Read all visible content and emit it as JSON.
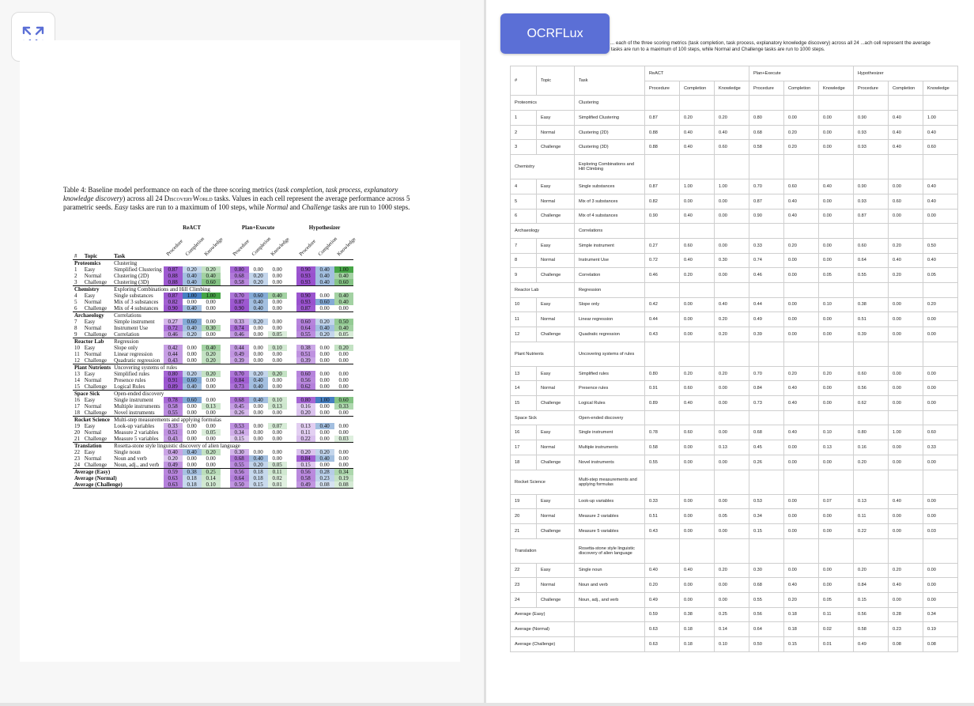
{
  "ui": {
    "badge_label": "OCRFLux",
    "expand_icon": "expand-arrows-icon",
    "accent_color": "#5b6fd6"
  },
  "paper": {
    "caption_lead": "Table 4: Baseline model performance on each of the three scoring metrics (",
    "caption_i1": "task completion, task process, explanatory knowledge discovery",
    "caption_mid": ") across all 24 ",
    "caption_sc": "DiscoveryWorld",
    "caption_mid2": " tasks. Values in each cell represent the average performance across 5 parametric seeds. ",
    "caption_i2": "Easy",
    "caption_mid3": " tasks are run to a maximum of 100 steps, while ",
    "caption_i3": "Normal",
    "caption_mid4": " and ",
    "caption_i4": "Challenge",
    "caption_tail": " tasks are run to 1000 steps.",
    "header_num": "#",
    "header_topic": "Topic",
    "header_task": "Task",
    "groups": [
      "ReACT",
      "Plan+Execute",
      "Hypothesizer"
    ],
    "subheaders": [
      "Procedure",
      "Completion",
      "Knowledge"
    ]
  },
  "right": {
    "caption": "... each of the three scoring metrics (task completion, task process, explanatory knowledge discovery) across all 24 ...ach cell represent the average performance across 5 parametric seeds. Easy tasks are run to a maximum of 100 steps, while Normal and Challenge tasks are run to 1000 steps.",
    "header_num": "#",
    "header_topic": "Topic",
    "header_task": "Task",
    "groups": [
      "ReACT",
      "Plan+Execute",
      "Hypothesizer"
    ],
    "subheaders": [
      "Procedure",
      "Completion",
      "Knowledge"
    ]
  },
  "sections": [
    {
      "topic": "Proteomics",
      "task": "Clustering",
      "rows": [
        {
          "n": "1",
          "d": "Easy",
          "t": "Simplified Clustering",
          "v": [
            "0.87",
            "0.20",
            "0.20",
            "0.80",
            "0.00",
            "0.00",
            "0.90",
            "0.40",
            "1.00"
          ]
        },
        {
          "n": "2",
          "d": "Normal",
          "t": "Clustering (2D)",
          "v": [
            "0.88",
            "0.40",
            "0.40",
            "0.68",
            "0.20",
            "0.00",
            "0.93",
            "0.40",
            "0.40"
          ]
        },
        {
          "n": "3",
          "d": "Challenge",
          "t": "Clustering (3D)",
          "v": [
            "0.88",
            "0.40",
            "0.60",
            "0.58",
            "0.20",
            "0.00",
            "0.93",
            "0.40",
            "0.60"
          ]
        }
      ]
    },
    {
      "topic": "Chemistry",
      "task": "Exploring Combinations and Hill Climbing",
      "rows": [
        {
          "n": "4",
          "d": "Easy",
          "t": "Single substances",
          "v": [
            "0.87",
            "1.00",
            "1.00",
            "0.70",
            "0.60",
            "0.40",
            "0.90",
            "0.00",
            "0.40"
          ]
        },
        {
          "n": "5",
          "d": "Normal",
          "t": "Mix of 3 substances",
          "v": [
            "0.82",
            "0.00",
            "0.00",
            "0.87",
            "0.40",
            "0.00",
            "0.93",
            "0.60",
            "0.40"
          ]
        },
        {
          "n": "6",
          "d": "Challenge",
          "t": "Mix of 4 substances",
          "v": [
            "0.90",
            "0.40",
            "0.00",
            "0.90",
            "0.40",
            "0.00",
            "0.87",
            "0.00",
            "0.00"
          ]
        }
      ]
    },
    {
      "topic": "Archaeology",
      "task": "Correlations",
      "rows": [
        {
          "n": "7",
          "d": "Easy",
          "t": "Simple instrument",
          "v": [
            "0.27",
            "0.60",
            "0.00",
            "0.33",
            "0.20",
            "0.00",
            "0.60",
            "0.20",
            "0.50"
          ]
        },
        {
          "n": "8",
          "d": "Normal",
          "t": "Instrument Use",
          "v": [
            "0.72",
            "0.40",
            "0.30",
            "0.74",
            "0.00",
            "0.00",
            "0.64",
            "0.40",
            "0.40"
          ]
        },
        {
          "n": "9",
          "d": "Challenge",
          "t": "Correlation",
          "v": [
            "0.46",
            "0.20",
            "0.00",
            "0.46",
            "0.00",
            "0.05",
            "0.55",
            "0.20",
            "0.05"
          ]
        }
      ]
    },
    {
      "topic": "Reactor Lab",
      "task": "Regression",
      "rows": [
        {
          "n": "10",
          "d": "Easy",
          "t": "Slope only",
          "v": [
            "0.42",
            "0.00",
            "0.40",
            "0.44",
            "0.00",
            "0.10",
            "0.38",
            "0.00",
            "0.20"
          ]
        },
        {
          "n": "11",
          "d": "Normal",
          "t": "Linear regression",
          "v": [
            "0.44",
            "0.00",
            "0.20",
            "0.49",
            "0.00",
            "0.00",
            "0.51",
            "0.00",
            "0.00"
          ]
        },
        {
          "n": "12",
          "d": "Challenge",
          "t": "Quadratic regression",
          "v": [
            "0.43",
            "0.00",
            "0.20",
            "0.39",
            "0.00",
            "0.00",
            "0.39",
            "0.00",
            "0.00"
          ]
        }
      ]
    },
    {
      "topic": "Plant Nutrients",
      "task": "Uncovering systems of rules",
      "rows": [
        {
          "n": "13",
          "d": "Easy",
          "t": "Simplified rules",
          "v": [
            "0.80",
            "0.20",
            "0.20",
            "0.70",
            "0.20",
            "0.20",
            "0.60",
            "0.00",
            "0.00"
          ]
        },
        {
          "n": "14",
          "d": "Normal",
          "t": "Presence rules",
          "v": [
            "0.91",
            "0.60",
            "0.00",
            "0.84",
            "0.40",
            "0.00",
            "0.56",
            "0.00",
            "0.00"
          ]
        },
        {
          "n": "15",
          "d": "Challenge",
          "t": "Logical Rules",
          "v": [
            "0.89",
            "0.40",
            "0.00",
            "0.73",
            "0.40",
            "0.00",
            "0.62",
            "0.00",
            "0.00"
          ]
        }
      ]
    },
    {
      "topic": "Space Sick",
      "task": "Open-ended discovery",
      "rows": [
        {
          "n": "16",
          "d": "Easy",
          "t": "Single instrument",
          "v": [
            "0.78",
            "0.60",
            "0.00",
            "0.68",
            "0.40",
            "0.10",
            "0.80",
            "1.00",
            "0.60"
          ]
        },
        {
          "n": "17",
          "d": "Normal",
          "t": "Multiple instruments",
          "v": [
            "0.58",
            "0.00",
            "0.13",
            "0.45",
            "0.00",
            "0.13",
            "0.16",
            "0.00",
            "0.33"
          ]
        },
        {
          "n": "18",
          "d": "Challenge",
          "t": "Novel instruments",
          "v": [
            "0.55",
            "0.00",
            "0.00",
            "0.26",
            "0.00",
            "0.00",
            "0.20",
            "0.00",
            "0.00"
          ]
        }
      ]
    },
    {
      "topic": "Rocket Science",
      "task": "Multi-step measurements and applying formulas",
      "rows": [
        {
          "n": "19",
          "d": "Easy",
          "t": "Look-up variables",
          "v": [
            "0.33",
            "0.00",
            "0.00",
            "0.53",
            "0.00",
            "0.07",
            "0.13",
            "0.40",
            "0.00"
          ]
        },
        {
          "n": "20",
          "d": "Normal",
          "t": "Measure 2 variables",
          "v": [
            "0.51",
            "0.00",
            "0.05",
            "0.34",
            "0.00",
            "0.00",
            "0.11",
            "0.00",
            "0.00"
          ]
        },
        {
          "n": "21",
          "d": "Challenge",
          "t": "Measure 5 variables",
          "v": [
            "0.43",
            "0.00",
            "0.00",
            "0.15",
            "0.00",
            "0.00",
            "0.22",
            "0.00",
            "0.03"
          ]
        }
      ]
    },
    {
      "topic": "Translation",
      "task": "Rosetta-stone style linguistic discovery of alien language",
      "rows": [
        {
          "n": "22",
          "d": "Easy",
          "t": "Single noun",
          "v": [
            "0.40",
            "0.40",
            "0.20",
            "0.30",
            "0.00",
            "0.00",
            "0.20",
            "0.20",
            "0.00"
          ]
        },
        {
          "n": "23",
          "d": "Normal",
          "t": "Noun and verb",
          "v": [
            "0.20",
            "0.00",
            "0.00",
            "0.68",
            "0.40",
            "0.00",
            "0.84",
            "0.40",
            "0.00"
          ]
        },
        {
          "n": "24",
          "d": "Challenge",
          "t": "Noun, adj., and verb",
          "v": [
            "0.49",
            "0.00",
            "0.00",
            "0.55",
            "0.20",
            "0.05",
            "0.15",
            "0.00",
            "0.00"
          ]
        }
      ]
    }
  ],
  "averages": [
    {
      "label": "Average (Easy)",
      "v": [
        "0.59",
        "0.38",
        "0.25",
        "0.56",
        "0.18",
        "0.11",
        "0.56",
        "0.28",
        "0.34"
      ]
    },
    {
      "label": "Average (Normal)",
      "v": [
        "0.63",
        "0.18",
        "0.14",
        "0.64",
        "0.18",
        "0.02",
        "0.58",
        "0.23",
        "0.19"
      ]
    },
    {
      "label": "Average (Challenge)",
      "v": [
        "0.63",
        "0.18",
        "0.10",
        "0.50",
        "0.15",
        "0.01",
        "0.49",
        "0.08",
        "0.08"
      ]
    }
  ]
}
